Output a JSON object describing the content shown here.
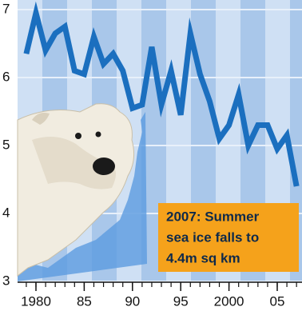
{
  "chart_data": {
    "type": "line",
    "annotation": [
      "2007: Summer",
      "sea ice falls to",
      "4.4m sq km"
    ],
    "x": [
      1979,
      1980,
      1981,
      1982,
      1983,
      1984,
      1985,
      1986,
      1987,
      1988,
      1989,
      1990,
      1991,
      1992,
      1993,
      1994,
      1995,
      1996,
      1997,
      1998,
      1999,
      2000,
      2001,
      2002,
      2003,
      2004,
      2005,
      2006,
      2007
    ],
    "series": [
      {
        "color": "#1b6fbf",
        "values": [
          6.35,
          6.95,
          6.4,
          6.65,
          6.75,
          6.1,
          6.05,
          6.6,
          6.2,
          6.35,
          6.1,
          5.55,
          5.6,
          6.45,
          5.6,
          6.1,
          5.45,
          6.65,
          6.05,
          5.65,
          5.1,
          5.3,
          5.75,
          5.0,
          5.3,
          5.3,
          4.95,
          5.15,
          4.4
        ]
      }
    ],
    "xlim": [
      1978.2,
      2008.0
    ],
    "xticks": [
      1980,
      {
        "value": 1985,
        "label": "85"
      },
      {
        "value": 1990,
        "label": "90"
      },
      {
        "value": 1995,
        "label": "95"
      },
      2000,
      {
        "value": 2005,
        "label": "05"
      }
    ],
    "ylim": [
      3,
      7
    ],
    "yticks": [
      3,
      4,
      5,
      6,
      7
    ],
    "grid": true
  }
}
